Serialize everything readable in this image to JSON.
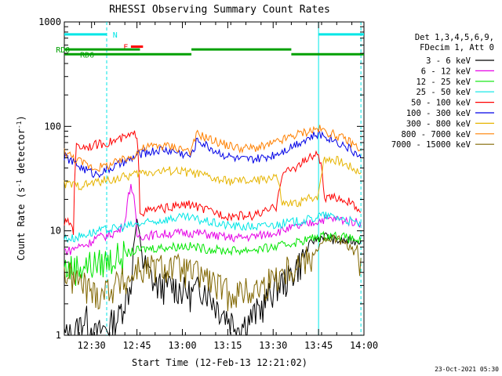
{
  "chart_data": {
    "type": "line",
    "title": "RHESSI Observing Summary Count Rates",
    "xlabel": "Start Time (12-Feb-13 12:21:02)",
    "ylabel_main": "Count Rate (s",
    "ylabel_sup1": "-1",
    "ylabel_mid": " detector",
    "ylabel_sup2": "-1",
    "ylabel_end": ")",
    "y_scale": "log",
    "ylim": [
      1,
      1000
    ],
    "xlim_minutes": [
      0,
      99
    ],
    "x_ticks": [
      {
        "minute": 9,
        "label": "12:30"
      },
      {
        "minute": 24,
        "label": "12:45"
      },
      {
        "minute": 39,
        "label": "13:00"
      },
      {
        "minute": 54,
        "label": "13:15"
      },
      {
        "minute": 69,
        "label": "13:30"
      },
      {
        "minute": 84,
        "label": "13:45"
      },
      {
        "minute": 99,
        "label": "14:00"
      }
    ],
    "y_ticks": [
      {
        "value": 1,
        "label": "1"
      },
      {
        "value": 10,
        "label": "10"
      },
      {
        "value": 100,
        "label": "100"
      },
      {
        "value": 1000,
        "label": "1000"
      }
    ],
    "legend_header": [
      "Det 1,3,4,5,6,9,",
      "FDecim 1, Att 0"
    ],
    "series": [
      {
        "name": "3 - 6 keV",
        "color": "#000000",
        "x": [
          0,
          3,
          7,
          10,
          14,
          18,
          22,
          24,
          26,
          30,
          36,
          42,
          46,
          50,
          54,
          58,
          62,
          66,
          70,
          74,
          78,
          82,
          86,
          90,
          94,
          98
        ],
        "y": [
          1,
          1,
          1.5,
          1,
          1.2,
          1.5,
          3,
          12,
          5,
          3,
          3,
          2.5,
          3,
          2,
          1.5,
          1.2,
          1.5,
          2,
          3,
          3.5,
          5,
          8,
          9,
          8,
          8,
          8
        ]
      },
      {
        "name": "6 - 12 keV",
        "color": "#e600e6",
        "x": [
          0,
          2,
          4,
          8,
          10,
          14,
          18,
          20,
          22,
          23,
          24,
          26,
          30,
          36,
          42,
          46,
          50,
          54,
          58,
          62,
          66,
          70,
          74,
          78,
          82,
          86,
          90,
          94,
          98
        ],
        "y": [
          6.5,
          6.5,
          7,
          7.5,
          8.5,
          9,
          10,
          12,
          28,
          20,
          9,
          9,
          9.2,
          9.5,
          9.6,
          9.4,
          9,
          8.6,
          8.6,
          8.8,
          9.2,
          9.8,
          10.5,
          11,
          12,
          13,
          13,
          12.5,
          12
        ]
      },
      {
        "name": "12 - 25 keV",
        "color": "#00e600",
        "x": [
          0,
          3,
          8,
          12,
          16,
          20,
          24,
          28,
          34,
          40,
          46,
          52,
          58,
          64,
          70,
          74,
          78,
          82,
          86,
          90,
          94,
          98
        ],
        "y": [
          4.5,
          4.5,
          4.8,
          5,
          5.5,
          6,
          6.5,
          6.8,
          7,
          7.2,
          6.8,
          6.5,
          6.5,
          6.7,
          7,
          7.5,
          8,
          8.5,
          9,
          9,
          8.5,
          8
        ]
      },
      {
        "name": "25 - 50 keV",
        "color": "#00e6e6",
        "x": [
          0,
          3,
          8,
          12,
          16,
          20,
          24,
          28,
          34,
          40,
          46,
          52,
          58,
          64,
          70,
          74,
          78,
          82,
          84,
          86,
          90,
          94,
          98
        ],
        "y": [
          8.5,
          8.5,
          9.5,
          10,
          10.5,
          11,
          11.5,
          12,
          13,
          13.5,
          12.5,
          11.5,
          11,
          11,
          11.5,
          12,
          12.5,
          13,
          14,
          14,
          13.5,
          12.5,
          11.5
        ]
      },
      {
        "name": "50 - 100 keV",
        "color": "#ff0000",
        "x": [
          0,
          2,
          3,
          4,
          8,
          12,
          16,
          20,
          24,
          25,
          30,
          36,
          42,
          46,
          50,
          54,
          58,
          62,
          66,
          70,
          72,
          76,
          80,
          84,
          86,
          90,
          94,
          98
        ],
        "y": [
          12,
          12,
          10,
          64,
          65,
          68,
          72,
          78,
          85,
          15,
          16,
          17,
          18,
          16,
          15,
          14,
          14,
          14,
          15,
          17,
          35,
          40,
          48,
          55,
          20,
          21,
          19,
          15
        ]
      },
      {
        "name": "100 - 300 keV",
        "color": "#0000e6",
        "x": [
          0,
          3,
          6,
          10,
          14,
          18,
          22,
          24,
          25,
          28,
          32,
          36,
          40,
          42,
          44,
          46,
          50,
          54,
          58,
          62,
          66,
          70,
          74,
          78,
          82,
          84,
          86,
          90,
          94,
          98
        ],
        "y": [
          52,
          45,
          40,
          35,
          38,
          43,
          48,
          53,
          55,
          57,
          60,
          58,
          54,
          52,
          75,
          68,
          58,
          52,
          48,
          48,
          50,
          55,
          62,
          72,
          80,
          84,
          82,
          72,
          62,
          50
        ]
      },
      {
        "name": "300 - 800 keV",
        "color": "#e6b400",
        "x": [
          0,
          2,
          4,
          8,
          12,
          16,
          20,
          24,
          25,
          30,
          36,
          42,
          46,
          50,
          54,
          58,
          62,
          66,
          70,
          72,
          76,
          80,
          84,
          86,
          90,
          94,
          98
        ],
        "y": [
          28,
          28,
          27,
          28,
          30,
          31,
          33,
          35,
          36,
          37,
          38,
          36,
          34,
          31,
          30,
          30,
          30,
          31,
          34,
          18,
          18,
          20,
          22,
          50,
          48,
          42,
          36
        ]
      },
      {
        "name": "800 - 7000 keV",
        "color": "#ff8000",
        "x": [
          0,
          3,
          6,
          10,
          14,
          18,
          22,
          24,
          25,
          28,
          32,
          36,
          40,
          42,
          44,
          46,
          50,
          54,
          58,
          62,
          66,
          70,
          74,
          78,
          82,
          84,
          86,
          90,
          94,
          98
        ],
        "y": [
          58,
          50,
          45,
          40,
          42,
          46,
          51,
          56,
          60,
          64,
          66,
          64,
          60,
          58,
          86,
          80,
          72,
          66,
          62,
          62,
          64,
          70,
          78,
          86,
          92,
          95,
          90,
          82,
          72,
          60
        ]
      },
      {
        "name": "7000 - 15000 keV",
        "color": "#806600",
        "x": [
          0,
          3,
          7,
          10,
          14,
          18,
          22,
          24,
          26,
          30,
          36,
          42,
          46,
          50,
          54,
          58,
          62,
          66,
          70,
          74,
          78,
          82,
          86,
          90,
          94,
          98
        ],
        "y": [
          4,
          3.5,
          3,
          2.5,
          2.8,
          3.2,
          3.5,
          4.5,
          4.2,
          4.5,
          4.6,
          4,
          3.8,
          3,
          2.6,
          2.6,
          2.7,
          3,
          3.8,
          4.5,
          5,
          6,
          8,
          8.5,
          7,
          5.5
        ]
      }
    ],
    "annotations": {
      "flags": [
        {
          "label": "N",
          "color": "#00e6e6",
          "y_value": 760,
          "segments": [
            [
              0,
              14
            ],
            [
              84,
              99
            ]
          ],
          "label_at": 16
        },
        {
          "label": "F",
          "color": "#ff0000",
          "y_value": 580,
          "segments": [
            [
              22,
              26
            ]
          ],
          "label_at": 19.5
        },
        {
          "label": "RD0",
          "color": "#00a000",
          "y_value": 545,
          "segments": [
            [
              0,
              25
            ],
            [
              42,
              75
            ]
          ],
          "label_at": -2.8
        },
        {
          "label": "RD6",
          "color": "#00a000",
          "y_value": 490,
          "segments": [
            [
              0,
              25
            ],
            [
              25,
              42
            ],
            [
              75,
              99
            ]
          ],
          "label_at": 5.2
        }
      ],
      "vlines": [
        {
          "minute": 14,
          "color": "#00e6e6",
          "dashed": true
        },
        {
          "minute": 84,
          "color": "#00e6e6",
          "dashed": false
        },
        {
          "minute": 98,
          "color": "#00e6e6",
          "dashed": true
        }
      ],
      "timestamp": "23-Oct-2021 05:30"
    }
  }
}
